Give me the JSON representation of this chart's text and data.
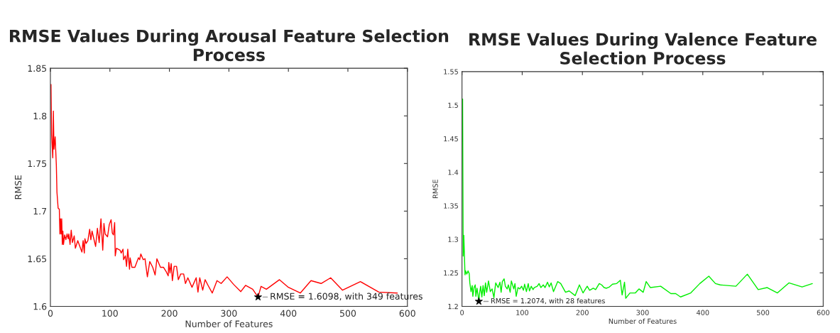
{
  "chart_data": [
    {
      "type": "line",
      "title": "RMSE Values During Arousal Feature Selection Process",
      "xlabel": "Number of Features",
      "ylabel": "RMSE",
      "xlim": [
        0,
        600
      ],
      "ylim": [
        1.6,
        1.85
      ],
      "xticks": [
        0,
        100,
        200,
        300,
        400,
        500,
        600
      ],
      "yticks": [
        1.6,
        1.65,
        1.7,
        1.75,
        1.8,
        1.85
      ],
      "grid": false,
      "legend": false,
      "series": [
        {
          "color": "#ff0000",
          "x": [
            1,
            2,
            4,
            5,
            6,
            8,
            10,
            11,
            13,
            15,
            16,
            17,
            18,
            19,
            20,
            21,
            22,
            24,
            26,
            28,
            30,
            31,
            33,
            35,
            37,
            40,
            42,
            46,
            50,
            53,
            55,
            57,
            58,
            60,
            63,
            66,
            68,
            70,
            73,
            76,
            79,
            82,
            85,
            88,
            90,
            92,
            96,
            99,
            102,
            104,
            106,
            108,
            109,
            111,
            117,
            119,
            122,
            123,
            126,
            128,
            130,
            133,
            134,
            137,
            142,
            148,
            150,
            152,
            156,
            159,
            163,
            167,
            172,
            176,
            179,
            185,
            190,
            195,
            198,
            199,
            201,
            203,
            205,
            208,
            212,
            215,
            219,
            224,
            227,
            231,
            238,
            245,
            248,
            251,
            256,
            260,
            265,
            272,
            280,
            287,
            297,
            308,
            320,
            328,
            340,
            349,
            354,
            363,
            385,
            400,
            420,
            438,
            455,
            471,
            491,
            521,
            552,
            583
          ],
          "values": [
            1.833,
            1.78,
            1.756,
            1.805,
            1.765,
            1.778,
            1.748,
            1.72,
            1.703,
            1.702,
            1.676,
            1.692,
            1.676,
            1.692,
            1.665,
            1.679,
            1.665,
            1.675,
            1.67,
            1.676,
            1.671,
            1.676,
            1.665,
            1.68,
            1.667,
            1.674,
            1.661,
            1.669,
            1.662,
            1.657,
            1.669,
            1.656,
            1.671,
            1.666,
            1.669,
            1.681,
            1.67,
            1.679,
            1.671,
            1.663,
            1.682,
            1.667,
            1.692,
            1.659,
            1.687,
            1.676,
            1.673,
            1.686,
            1.691,
            1.677,
            1.675,
            1.688,
            1.653,
            1.661,
            1.659,
            1.656,
            1.66,
            1.649,
            1.653,
            1.642,
            1.66,
            1.639,
            1.651,
            1.641,
            1.641,
            1.651,
            1.649,
            1.655,
            1.649,
            1.65,
            1.631,
            1.647,
            1.641,
            1.633,
            1.65,
            1.641,
            1.641,
            1.636,
            1.632,
            1.646,
            1.635,
            1.645,
            1.627,
            1.642,
            1.642,
            1.628,
            1.634,
            1.634,
            1.624,
            1.63,
            1.62,
            1.63,
            1.615,
            1.63,
            1.617,
            1.628,
            1.622,
            1.614,
            1.627,
            1.624,
            1.631,
            1.623,
            1.6155,
            1.622,
            1.618,
            1.6098,
            1.621,
            1.618,
            1.628,
            1.62,
            1.614,
            1.627,
            1.624,
            1.63,
            1.617,
            1.626,
            1.615,
            1.614
          ]
        },
        {
          "type": "scatter",
          "color": "#000000",
          "marker": "star",
          "x": [
            349
          ],
          "values": [
            1.6098
          ]
        }
      ],
      "annotations": [
        {
          "text": "RMSE = 1.6098, with 349 features",
          "x": 349,
          "y": 1.6098
        }
      ]
    },
    {
      "type": "line",
      "title": "RMSE Values During Valence Feature Selection Process",
      "xlabel": "Number of Features",
      "ylabel": "RMSE",
      "xlim": [
        0,
        600
      ],
      "ylim": [
        1.2,
        1.55
      ],
      "xticks": [
        0,
        100,
        200,
        300,
        400,
        500,
        600
      ],
      "yticks": [
        1.2,
        1.25,
        1.3,
        1.35,
        1.4,
        1.45,
        1.5,
        1.55
      ],
      "grid": false,
      "legend": false,
      "series": [
        {
          "color": "#00ee00",
          "x": [
            1,
            2,
            3,
            5,
            6,
            8,
            10,
            12,
            13,
            15,
            17,
            18,
            20,
            22,
            23,
            25,
            27,
            28,
            29,
            31,
            33,
            35,
            37,
            39,
            41,
            44,
            47,
            50,
            53,
            56,
            60,
            63,
            65,
            67,
            70,
            72,
            75,
            77,
            80,
            82,
            86,
            88,
            90,
            93,
            96,
            99,
            102,
            104,
            107,
            110,
            112,
            115,
            118,
            120,
            125,
            128,
            131,
            135,
            138,
            142,
            145,
            148,
            152,
            159,
            164,
            172,
            178,
            188,
            195,
            201,
            208,
            212,
            218,
            222,
            228,
            232,
            236,
            240,
            245,
            250,
            257,
            263,
            266,
            270,
            272,
            279,
            288,
            294,
            301,
            306,
            313,
            330,
            347,
            355,
            363,
            380,
            395,
            410,
            421,
            429,
            455,
            474,
            492,
            507,
            524,
            543,
            565,
            582
          ],
          "values": [
            1.509,
            1.275,
            1.306,
            1.247,
            1.253,
            1.248,
            1.253,
            1.249,
            1.235,
            1.222,
            1.231,
            1.215,
            1.228,
            1.232,
            1.215,
            1.227,
            1.214,
            1.2074,
            1.218,
            1.23,
            1.214,
            1.231,
            1.216,
            1.235,
            1.221,
            1.238,
            1.222,
            1.226,
            1.213,
            1.235,
            1.228,
            1.236,
            1.221,
            1.237,
            1.241,
            1.23,
            1.226,
            1.232,
            1.221,
            1.238,
            1.226,
            1.234,
            1.215,
            1.228,
            1.226,
            1.23,
            1.224,
            1.233,
            1.222,
            1.234,
            1.223,
            1.23,
            1.225,
            1.228,
            1.23,
            1.234,
            1.228,
            1.232,
            1.228,
            1.236,
            1.229,
            1.235,
            1.222,
            1.237,
            1.234,
            1.221,
            1.223,
            1.216,
            1.232,
            1.22,
            1.23,
            1.224,
            1.227,
            1.225,
            1.234,
            1.232,
            1.228,
            1.227,
            1.229,
            1.233,
            1.234,
            1.239,
            1.217,
            1.236,
            1.212,
            1.22,
            1.22,
            1.226,
            1.221,
            1.237,
            1.228,
            1.23,
            1.219,
            1.219,
            1.214,
            1.22,
            1.234,
            1.245,
            1.234,
            1.232,
            1.23,
            1.248,
            1.225,
            1.228,
            1.22,
            1.235,
            1.229,
            1.234
          ]
        },
        {
          "type": "scatter",
          "color": "#000000",
          "marker": "star",
          "x": [
            28
          ],
          "values": [
            1.2074
          ]
        }
      ],
      "annotations": [
        {
          "text": "RMSE = 1.2074, with 28 features",
          "x": 28,
          "y": 1.2074
        }
      ]
    }
  ]
}
